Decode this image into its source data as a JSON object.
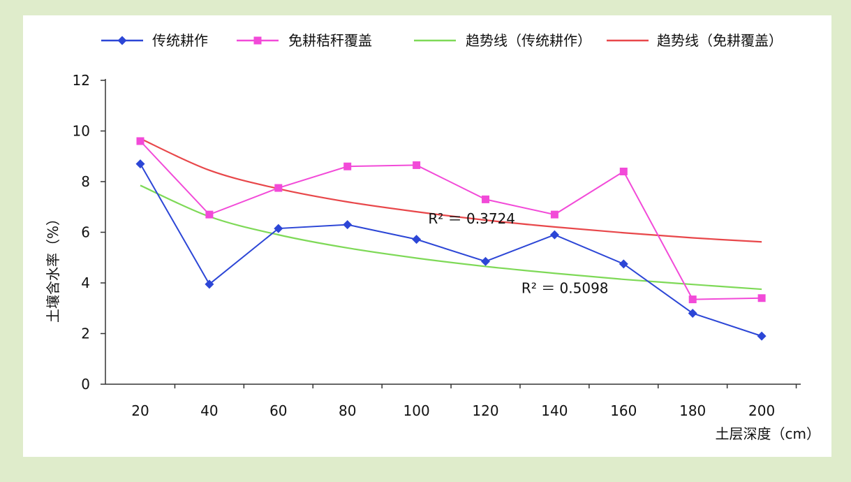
{
  "chart_data": {
    "type": "line",
    "title": "",
    "xlabel": "土层深度（cm）",
    "ylabel": "土壤含水率（%）",
    "x": [
      20,
      40,
      60,
      80,
      100,
      120,
      140,
      160,
      180,
      200
    ],
    "ylim": [
      0,
      12
    ],
    "yticks": [
      0,
      2,
      4,
      6,
      8,
      10,
      12
    ],
    "grid": false,
    "legend_position": "top",
    "series": [
      {
        "name": "传统耕作",
        "color": "#2c46d6",
        "marker": "diamond",
        "values": [
          8.7,
          3.95,
          6.15,
          6.3,
          5.72,
          4.85,
          5.9,
          4.75,
          2.8,
          1.9
        ]
      },
      {
        "name": "免耕秸秆覆盖",
        "color": "#f24ad8",
        "marker": "square",
        "values": [
          9.6,
          6.7,
          7.75,
          8.6,
          8.65,
          7.3,
          6.7,
          8.4,
          3.35,
          3.4
        ]
      }
    ],
    "trendlines": [
      {
        "name": "趋势线（传统耕作）",
        "color": "#7ed957",
        "values": [
          7.85,
          6.62,
          5.9,
          5.38,
          4.98,
          4.65,
          4.38,
          4.14,
          3.94,
          3.75
        ]
      },
      {
        "name": "趋势线（免耕覆盖）",
        "color": "#e8474a",
        "values": [
          9.7,
          8.45,
          7.72,
          7.2,
          6.81,
          6.48,
          6.21,
          5.98,
          5.78,
          5.62
        ]
      }
    ],
    "annotations": [
      {
        "text": "R² ＝ 0.3724",
        "x": 116,
        "y": 6.35
      },
      {
        "text": "R² ＝ 0.5098",
        "x": 143,
        "y": 3.6
      }
    ]
  }
}
